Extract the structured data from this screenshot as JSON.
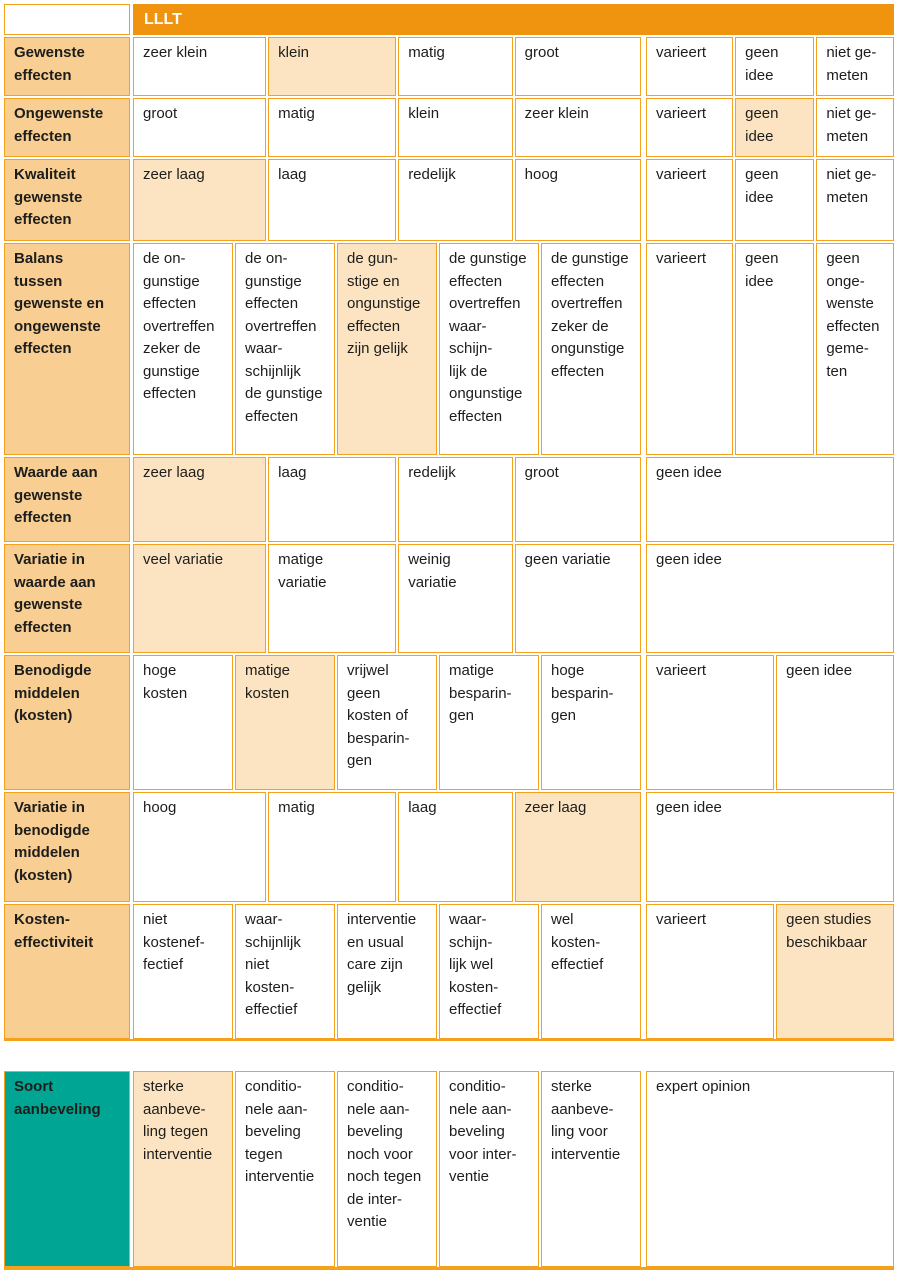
{
  "title": "LLLT",
  "colors": {
    "header_orange": "#F0930F",
    "border_orange": "#F5A11C",
    "label_bg": "#F8CE92",
    "highlight_bg": "#FCE4C2",
    "teal": "#00A693",
    "text": "#1D1D1B"
  },
  "table": {
    "rows": [
      {
        "label": "Gewenste\neffecten",
        "cells": [
          {
            "text": "zeer klein"
          },
          {
            "text": "klein",
            "hl": true
          },
          {
            "text": "matig"
          },
          {
            "text": "groot"
          }
        ],
        "right_cells": [
          {
            "text": "varieert"
          },
          {
            "text": "geen\nidee"
          },
          {
            "text": "niet ge-\nmeten"
          }
        ]
      },
      {
        "label": "Ongewenste\neffecten",
        "cells": [
          {
            "text": "groot"
          },
          {
            "text": "matig"
          },
          {
            "text": "klein"
          },
          {
            "text": "zeer klein"
          }
        ],
        "right_cells": [
          {
            "text": "varieert"
          },
          {
            "text": "geen\nidee",
            "hl": true
          },
          {
            "text": "niet ge-\nmeten"
          }
        ]
      },
      {
        "label": "Kwaliteit\ngewenste\neffecten",
        "cells": [
          {
            "text": "zeer laag",
            "hl": true
          },
          {
            "text": "laag"
          },
          {
            "text": "redelijk"
          },
          {
            "text": "hoog"
          }
        ],
        "right_cells": [
          {
            "text": "varieert"
          },
          {
            "text": "geen\nidee"
          },
          {
            "text": "niet ge-\nmeten"
          }
        ]
      },
      {
        "label": "Balans\ntussen\ngewenste en\nongewenste\neffecten",
        "cells": [
          {
            "text": "de on-\ngunstige\neffecten\novertreffen\nzeker de\ngunstige\neffecten"
          },
          {
            "text": "de on-\ngunstige\neffecten\novertreffen\nwaar-\nschijnlijk\nde gunstige\neffecten"
          },
          {
            "text": "de gun-\nstige en\nongunstige\neffecten\nzijn gelijk",
            "hl": true
          },
          {
            "text": "de gunstige\neffecten\novertreffen\nwaar-\nschijn-\nlijk de\nongunstige\neffecten"
          },
          {
            "text": "de gunstige\neffecten\novertreffen\nzeker de\nongunstige\neffecten"
          }
        ],
        "right_cells": [
          {
            "text": "varieert"
          },
          {
            "text": "geen\nidee"
          },
          {
            "text": "geen\nonge-\nwenste\neffecten\ngeme-\nten"
          }
        ]
      },
      {
        "label": "Waarde aan\ngewenste\neffecten",
        "cells": [
          {
            "text": "zeer laag",
            "hl": true
          },
          {
            "text": "laag"
          },
          {
            "text": "redelijk"
          },
          {
            "text": "groot"
          }
        ],
        "right_cells": [
          {
            "text": "geen idee"
          }
        ]
      },
      {
        "label": "Variatie in\nwaarde aan\ngewenste\neffecten",
        "cells": [
          {
            "text": "veel variatie",
            "hl": true
          },
          {
            "text": "matige\nvariatie"
          },
          {
            "text": "weinig\nvariatie"
          },
          {
            "text": "geen variatie"
          }
        ],
        "right_cells": [
          {
            "text": "geen idee"
          }
        ]
      },
      {
        "label": "Benodigde\nmiddelen\n(kosten)",
        "cells": [
          {
            "text": "hoge\nkosten"
          },
          {
            "text": "matige\nkosten",
            "hl": true
          },
          {
            "text": "vrijwel\ngeen\nkosten of\nbesparin-\ngen"
          },
          {
            "text": "matige\nbesparin-\ngen"
          },
          {
            "text": "hoge\nbesparin-\ngen"
          }
        ],
        "right_cells": [
          {
            "text": "varieert"
          },
          {
            "text": "geen idee"
          }
        ]
      },
      {
        "label": "Variatie in\nbenodigde\nmiddelen\n(kosten)",
        "cells": [
          {
            "text": "hoog"
          },
          {
            "text": "matig"
          },
          {
            "text": "laag"
          },
          {
            "text": "zeer laag",
            "hl": true
          }
        ],
        "right_cells": [
          {
            "text": "geen idee"
          }
        ]
      },
      {
        "label": "Kosten-\neffectiviteit",
        "cells": [
          {
            "text": "niet\nkostenef-\nfectief"
          },
          {
            "text": "waar-\nschijnlijk\nniet\nkosten-\neffectief"
          },
          {
            "text": "interventie\nen usual\ncare zijn\ngelijk"
          },
          {
            "text": "waar-\nschijn-\nlijk wel\nkosten-\neffectief"
          },
          {
            "text": "wel\nkosten-\neffectief"
          }
        ],
        "right_cells": [
          {
            "text": "varieert"
          },
          {
            "text": "geen studies\nbeschikbaar",
            "hl": true
          }
        ]
      }
    ]
  },
  "recommendation": {
    "label": "Soort\naanbeveling",
    "cells": [
      {
        "text": "sterke\naanbeve-\nling tegen\ninterventie",
        "hl": true
      },
      {
        "text": "conditio-\nnele aan-\nbeveling\ntegen\ninterventie"
      },
      {
        "text": "conditio-\nnele aan-\nbeveling\nnoch voor\nnoch tegen\nde inter-\nventie"
      },
      {
        "text": "conditio-\nnele aan-\nbeveling\nvoor inter-\nventie"
      },
      {
        "text": "sterke\naanbeve-\nling voor\ninterventie"
      }
    ],
    "right_cells": [
      {
        "text": "expert opinion"
      }
    ]
  }
}
